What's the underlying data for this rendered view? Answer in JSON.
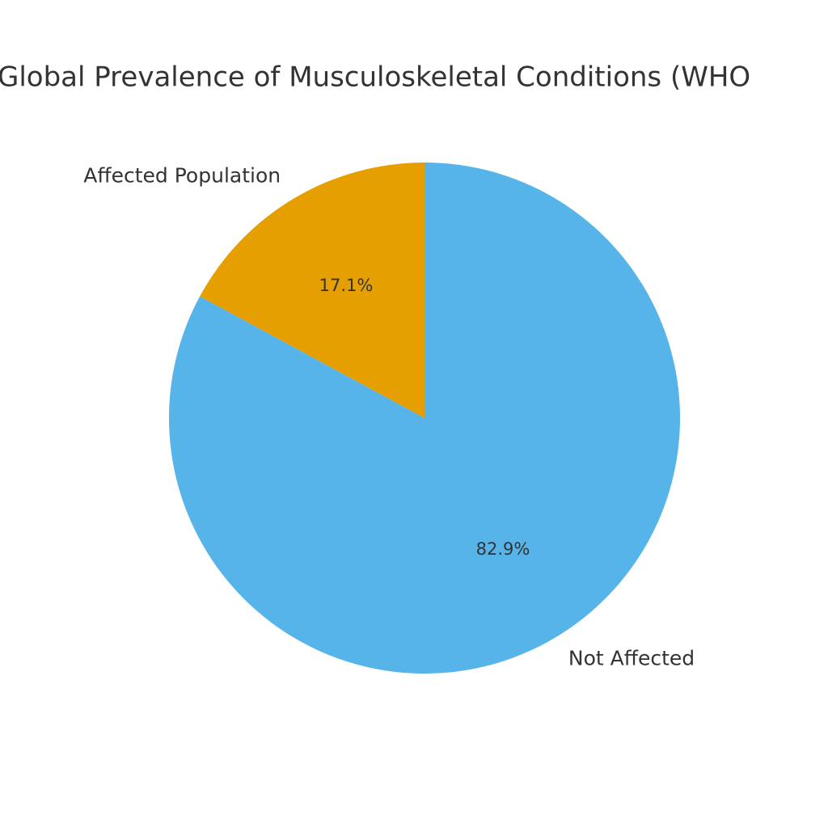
{
  "chart_data": {
    "type": "pie",
    "title": "Global Prevalence of Musculoskeletal Conditions (WHO",
    "categories": [
      "Affected Population",
      "Not Affected"
    ],
    "values": [
      17.1,
      82.9
    ],
    "value_labels": [
      "17.1%",
      "82.9%"
    ],
    "colors": [
      "#E69F00",
      "#56B4E9"
    ],
    "start_angle": 90
  }
}
